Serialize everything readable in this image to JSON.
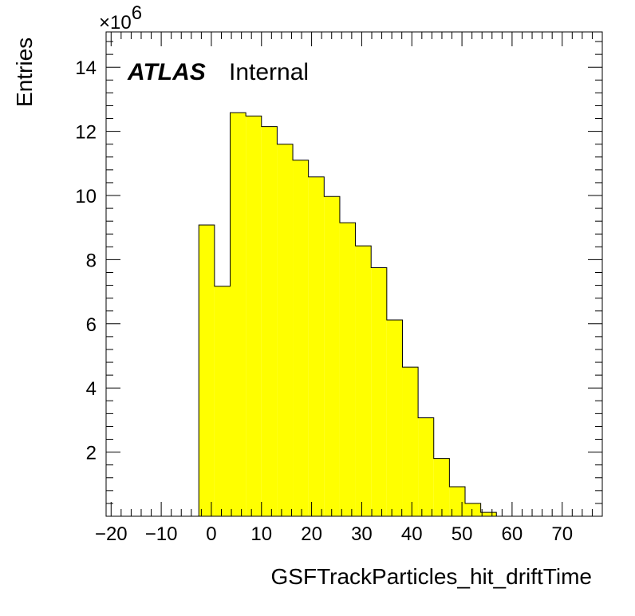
{
  "chart_data": {
    "type": "bar",
    "style": "histogram",
    "xlabel": "GSFTrackParticles_hit_driftTime",
    "ylabel": "Entries",
    "y_multiplier_label": "×10",
    "y_multiplier_exponent": "6",
    "label_bold": "ATLAS",
    "label_status": "Internal",
    "xlim": [
      -21,
      78
    ],
    "ylim": [
      0,
      15.1
    ],
    "x_ticks": [
      -20,
      -10,
      0,
      10,
      20,
      30,
      40,
      50,
      60,
      70
    ],
    "x_tick_labels": [
      "−20",
      "−10",
      "0",
      "10",
      "20",
      "30",
      "40",
      "50",
      "60",
      "70"
    ],
    "y_ticks": [
      2,
      4,
      6,
      8,
      10,
      12,
      14
    ],
    "y_tick_labels": [
      "2",
      "4",
      "6",
      "8",
      "10",
      "12",
      "14"
    ],
    "bin_edges": [
      -2.5,
      0.625,
      3.75,
      6.875,
      10.0,
      13.125,
      16.25,
      19.375,
      22.5,
      25.625,
      28.75,
      31.875,
      35.0,
      38.125,
      41.25,
      44.375,
      47.5,
      50.625,
      53.75,
      56.875
    ],
    "values": [
      9.08,
      7.17,
      12.58,
      12.48,
      12.15,
      11.6,
      11.1,
      10.58,
      9.97,
      9.15,
      8.43,
      7.75,
      6.12,
      4.65,
      3.07,
      1.8,
      0.92,
      0.4,
      0.12
    ],
    "fill_color": "#ffff00",
    "line_color": "#000000",
    "legend": "none",
    "grid": false
  }
}
